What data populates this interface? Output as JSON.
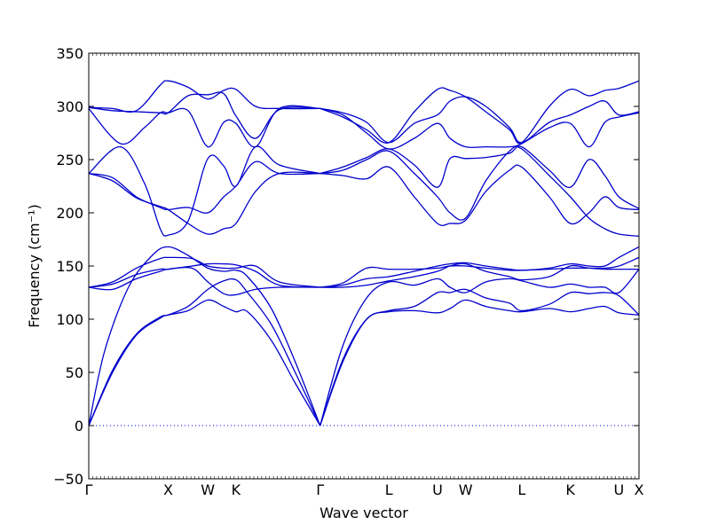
{
  "chart_data": {
    "type": "line",
    "xlabel": "Wave vector",
    "ylabel": "Frequency (cm⁻¹)",
    "ylim": [
      -50,
      350
    ],
    "yticks": [
      -50,
      0,
      50,
      100,
      150,
      200,
      250,
      300,
      350
    ],
    "x_segments": [
      {
        "label": "Γ",
        "x": 0.0
      },
      {
        "label": "X",
        "x": 1.0
      },
      {
        "label": "W",
        "x": 1.5
      },
      {
        "label": "K",
        "x": 1.854
      },
      {
        "label": "Γ",
        "x": 2.914
      },
      {
        "label": "L",
        "x": 3.78
      },
      {
        "label": "U",
        "x": 4.392
      },
      {
        "label": "W",
        "x": 4.746
      },
      {
        "label": "L",
        "x": 5.453
      },
      {
        "label": "K",
        "x": 6.065
      },
      {
        "label": "U",
        "x": 6.677
      },
      {
        "label": "X",
        "x": 6.93
      }
    ],
    "xlim": [
      0,
      6.93
    ],
    "zero_line": true,
    "band_color": "#0000cc",
    "zero_line_color": "#0000ff",
    "series": [
      {
        "x": [
          0,
          0.3,
          0.6,
          0.9,
          1.0,
          1.25,
          1.5,
          1.7,
          1.854,
          2.0,
          2.3,
          2.6,
          2.914
        ],
        "values": [
          0,
          50,
          85,
          101,
          104,
          108,
          118,
          112,
          107,
          107,
          80,
          40,
          0
        ]
      },
      {
        "x": [
          0,
          0.3,
          0.6,
          0.9,
          1.0,
          1.25,
          1.5,
          1.7,
          1.854,
          2.0,
          2.3,
          2.6,
          2.914
        ],
        "values": [
          0,
          52,
          86,
          102,
          104,
          112,
          128,
          136,
          137,
          125,
          95,
          50,
          0
        ]
      },
      {
        "x": [
          0,
          0.2,
          0.5,
          0.8,
          1.0,
          1.25,
          1.5,
          1.7,
          1.854,
          2.0,
          2.3,
          2.6,
          2.914
        ],
        "values": [
          0,
          70,
          130,
          160,
          168,
          160,
          148,
          145,
          146,
          140,
          110,
          60,
          0
        ]
      },
      {
        "x": [
          0,
          0.3,
          0.6,
          0.9,
          1.0,
          1.3,
          1.5,
          1.7,
          1.854,
          2.1,
          2.4,
          2.914
        ],
        "values": [
          130,
          128,
          138,
          145,
          147,
          148,
          135,
          124,
          123,
          128,
          130,
          130
        ]
      },
      {
        "x": [
          0,
          0.3,
          0.6,
          0.9,
          1.0,
          1.3,
          1.5,
          1.7,
          1.854,
          2.1,
          2.4,
          2.914
        ],
        "values": [
          130,
          135,
          148,
          157,
          158,
          157,
          150,
          148,
          148,
          150,
          135,
          130
        ]
      },
      {
        "x": [
          0,
          0.3,
          0.6,
          0.9,
          1.0,
          1.3,
          1.5,
          1.7,
          1.854,
          2.1,
          2.4,
          2.914
        ],
        "values": [
          130,
          133,
          142,
          147,
          147,
          150,
          152,
          152,
          151,
          145,
          132,
          130
        ]
      },
      {
        "x": [
          0,
          0.3,
          0.6,
          0.9,
          1.0,
          1.25,
          1.5,
          1.7,
          1.854,
          2.1,
          2.4,
          2.914
        ],
        "values": [
          237,
          230,
          214,
          206,
          203,
          190,
          180,
          185,
          190,
          220,
          237,
          237
        ]
      },
      {
        "x": [
          0,
          0.3,
          0.6,
          0.9,
          1.0,
          1.25,
          1.5,
          1.7,
          1.854,
          2.1,
          2.4,
          2.914
        ],
        "values": [
          237,
          233,
          215,
          205,
          203,
          205,
          200,
          215,
          225,
          248,
          237,
          237
        ]
      },
      {
        "x": [
          0,
          0.4,
          0.7,
          0.9,
          1.0,
          1.25,
          1.5,
          1.7,
          1.854,
          2.1,
          2.4,
          2.914
        ],
        "values": [
          237,
          262,
          228,
          185,
          179,
          192,
          251,
          244,
          225,
          262,
          245,
          237
        ]
      },
      {
        "x": [
          0,
          0.4,
          0.7,
          0.9,
          1.0,
          1.25,
          1.5,
          1.7,
          1.854,
          2.1,
          2.4,
          2.914
        ],
        "values": [
          298,
          265,
          280,
          294,
          294,
          296,
          262,
          285,
          284,
          262,
          298,
          298
        ]
      },
      {
        "x": [
          0,
          0.3,
          0.6,
          0.9,
          1.0,
          1.25,
          1.5,
          1.7,
          1.854,
          2.1,
          2.4,
          2.914
        ],
        "values": [
          299,
          296,
          295,
          294,
          294,
          310,
          311,
          312,
          291,
          270,
          297,
          298
        ]
      },
      {
        "x": [
          0,
          0.3,
          0.6,
          0.9,
          1.0,
          1.25,
          1.5,
          1.7,
          1.854,
          2.1,
          2.4,
          2.914
        ],
        "values": [
          299,
          298,
          296,
          320,
          324,
          318,
          307,
          315,
          316,
          300,
          298,
          298
        ]
      },
      {
        "x": [
          2.914,
          3.2,
          3.5,
          3.78,
          4.1,
          4.392,
          4.55,
          4.746,
          5.0,
          5.3,
          5.453,
          5.8,
          6.065,
          6.3,
          6.5,
          6.677,
          6.93
        ],
        "values": [
          0,
          60,
          100,
          107,
          108,
          106,
          110,
          118,
          112,
          108,
          107,
          110,
          107,
          110,
          112,
          106,
          104
        ]
      },
      {
        "x": [
          2.914,
          3.2,
          3.5,
          3.78,
          4.1,
          4.392,
          4.55,
          4.746,
          5.0,
          5.3,
          5.453,
          5.8,
          6.065,
          6.3,
          6.5,
          6.677,
          6.93
        ],
        "values": [
          0,
          62,
          100,
          108,
          112,
          125,
          125,
          128,
          120,
          115,
          108,
          114,
          125,
          124,
          125,
          122,
          104
        ]
      },
      {
        "x": [
          2.914,
          3.2,
          3.5,
          3.78,
          4.1,
          4.392,
          4.55,
          4.746,
          5.0,
          5.3,
          5.453,
          5.8,
          6.065,
          6.3,
          6.5,
          6.677,
          6.93
        ],
        "values": [
          0,
          75,
          120,
          135,
          132,
          138,
          130,
          125,
          135,
          138,
          136,
          130,
          133,
          130,
          130,
          125,
          147
        ]
      },
      {
        "x": [
          2.914,
          3.2,
          3.5,
          3.78,
          4.1,
          4.392,
          4.55,
          4.746,
          5.0,
          5.3,
          5.453,
          5.8,
          6.065,
          6.3,
          6.5,
          6.677,
          6.93
        ],
        "values": [
          130,
          130,
          132,
          136,
          140,
          145,
          150,
          152,
          145,
          140,
          137,
          140,
          150,
          148,
          147,
          147,
          147
        ]
      },
      {
        "x": [
          2.914,
          3.2,
          3.5,
          3.78,
          4.1,
          4.392,
          4.55,
          4.746,
          5.0,
          5.3,
          5.453,
          5.8,
          6.065,
          6.3,
          6.5,
          6.677,
          6.93
        ],
        "values": [
          130,
          132,
          138,
          140,
          145,
          150,
          152,
          153,
          150,
          147,
          146,
          148,
          152,
          150,
          150,
          158,
          168
        ]
      },
      {
        "x": [
          2.914,
          3.2,
          3.5,
          3.78,
          4.1,
          4.392,
          4.55,
          4.746,
          5.0,
          5.3,
          5.453,
          5.8,
          6.065,
          6.3,
          6.5,
          6.677,
          6.93
        ],
        "values": [
          130,
          134,
          148,
          147,
          147,
          148,
          150,
          150,
          148,
          146,
          146,
          147,
          148,
          148,
          148,
          150,
          158
        ]
      },
      {
        "x": [
          2.914,
          3.2,
          3.5,
          3.78,
          4.1,
          4.392,
          4.55,
          4.746,
          5.0,
          5.3,
          5.453,
          5.8,
          6.065,
          6.3,
          6.5,
          6.677,
          6.93
        ],
        "values": [
          237,
          235,
          232,
          243,
          215,
          190,
          190,
          193,
          220,
          240,
          243,
          215,
          190,
          200,
          215,
          205,
          203
        ]
      },
      {
        "x": [
          2.914,
          3.2,
          3.5,
          3.78,
          4.1,
          4.392,
          4.55,
          4.746,
          5.0,
          5.3,
          5.453,
          5.8,
          6.065,
          6.3,
          6.5,
          6.677,
          6.93
        ],
        "values": [
          237,
          240,
          250,
          258,
          237,
          215,
          200,
          195,
          230,
          258,
          260,
          235,
          215,
          195,
          185,
          180,
          178
        ]
      },
      {
        "x": [
          2.914,
          3.2,
          3.5,
          3.78,
          4.1,
          4.392,
          4.55,
          4.746,
          5.0,
          5.3,
          5.453,
          5.8,
          6.065,
          6.3,
          6.5,
          6.677,
          6.93
        ],
        "values": [
          237,
          243,
          252,
          260,
          245,
          224,
          251,
          251,
          252,
          256,
          262,
          240,
          224,
          250,
          235,
          215,
          204
        ]
      },
      {
        "x": [
          2.914,
          3.2,
          3.5,
          3.78,
          4.1,
          4.392,
          4.55,
          4.746,
          5.0,
          5.3,
          5.453,
          5.8,
          6.065,
          6.3,
          6.5,
          6.677,
          6.93
        ],
        "values": [
          298,
          292,
          275,
          260,
          270,
          284,
          270,
          262,
          262,
          262,
          265,
          280,
          284,
          262,
          285,
          290,
          294
        ]
      },
      {
        "x": [
          2.914,
          3.2,
          3.5,
          3.78,
          4.1,
          4.392,
          4.55,
          4.746,
          5.0,
          5.3,
          5.453,
          5.8,
          6.065,
          6.3,
          6.5,
          6.677,
          6.93
        ],
        "values": [
          298,
          294,
          285,
          266,
          284,
          292,
          305,
          309,
          300,
          280,
          266,
          285,
          292,
          300,
          305,
          292,
          295
        ]
      },
      {
        "x": [
          2.914,
          3.2,
          3.5,
          3.78,
          4.1,
          4.392,
          4.55,
          4.746,
          5.0,
          5.3,
          5.453,
          5.8,
          6.065,
          6.3,
          6.5,
          6.677,
          6.93
        ],
        "values": [
          298,
          290,
          278,
          266,
          295,
          316,
          315,
          309,
          295,
          278,
          266,
          300,
          316,
          310,
          315,
          317,
          324
        ]
      }
    ]
  }
}
